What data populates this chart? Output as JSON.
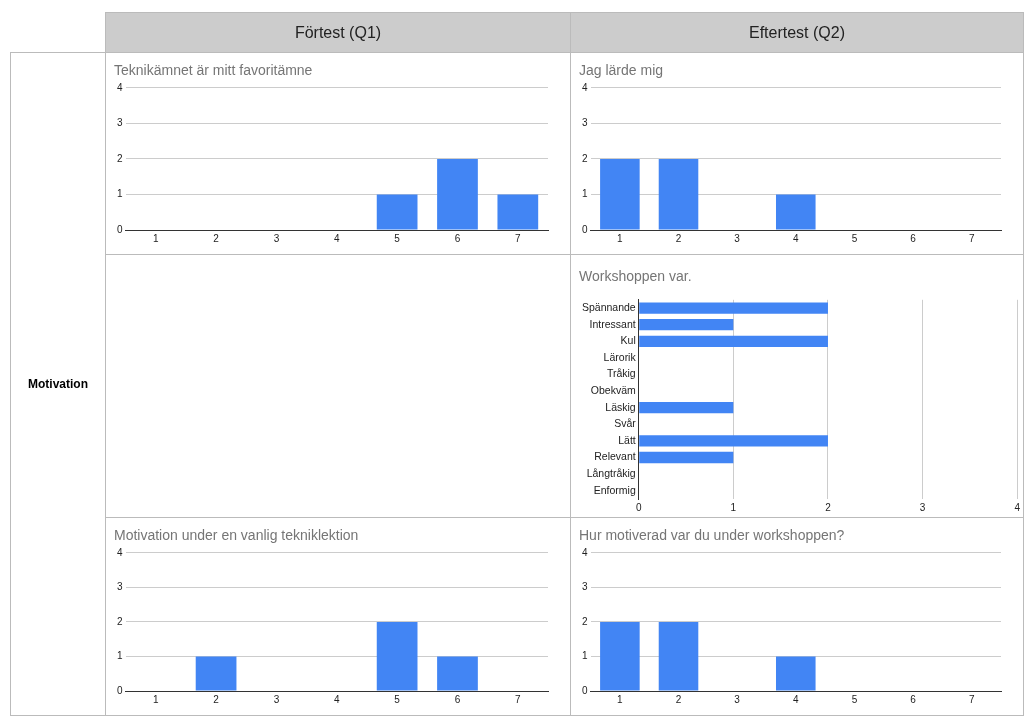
{
  "chart_data": [
    {
      "type": "other",
      "annotations": [
        "Förtest (Q1)",
        "Eftertest (Q2)",
        "Motivation"
      ]
    },
    {
      "type": "bar",
      "title": "Teknikämnet är mitt favoritämne",
      "categories": [
        "1",
        "2",
        "3",
        "4",
        "5",
        "6",
        "7"
      ],
      "values": [
        0,
        0,
        0,
        0,
        1,
        2,
        1
      ],
      "color": "#4285f4",
      "ylim": [
        0,
        4
      ],
      "yticks": [
        0,
        1,
        2,
        3,
        4
      ],
      "grid": "y"
    },
    {
      "type": "bar",
      "title": "Jag lärde mig",
      "categories": [
        "1",
        "2",
        "3",
        "4",
        "5",
        "6",
        "7"
      ],
      "values": [
        2,
        2,
        0,
        1,
        0,
        0,
        0
      ],
      "color": "#4285f4",
      "ylim": [
        0,
        4
      ],
      "yticks": [
        0,
        1,
        2,
        3,
        4
      ],
      "grid": "y"
    },
    {
      "type": "bar",
      "orientation": "horizontal",
      "title": "Workshoppen var.",
      "categories": [
        "Spännande",
        "Intressant",
        "Kul",
        "Lärorik",
        "Tråkig",
        "Obekväm",
        "Läskig",
        "Svår",
        "Lätt",
        "Relevant",
        "Långtråkig",
        "Enformig"
      ],
      "values": [
        2,
        1,
        2,
        0,
        0,
        0,
        1,
        0,
        2,
        1,
        0,
        0
      ],
      "color": "#4285f4",
      "xlim": [
        0,
        4
      ],
      "xticks": [
        0,
        1,
        2,
        3,
        4
      ],
      "grid": "x"
    },
    {
      "type": "bar",
      "title": "Motivation under en vanlig tekniklektion",
      "categories": [
        "1",
        "2",
        "3",
        "4",
        "5",
        "6",
        "7"
      ],
      "values": [
        0,
        1,
        0,
        0,
        2,
        1,
        0
      ],
      "color": "#4285f4",
      "ylim": [
        0,
        4
      ],
      "yticks": [
        0,
        1,
        2,
        3,
        4
      ],
      "grid": "y"
    },
    {
      "type": "bar",
      "title": "Hur motiverad var du under workshoppen?",
      "categories": [
        "1",
        "2",
        "3",
        "4",
        "5",
        "6",
        "7"
      ],
      "values": [
        2,
        2,
        0,
        1,
        0,
        0,
        0
      ],
      "color": "#4285f4",
      "ylim": [
        0,
        4
      ],
      "yticks": [
        0,
        1,
        2,
        3,
        4
      ],
      "grid": "y"
    }
  ]
}
